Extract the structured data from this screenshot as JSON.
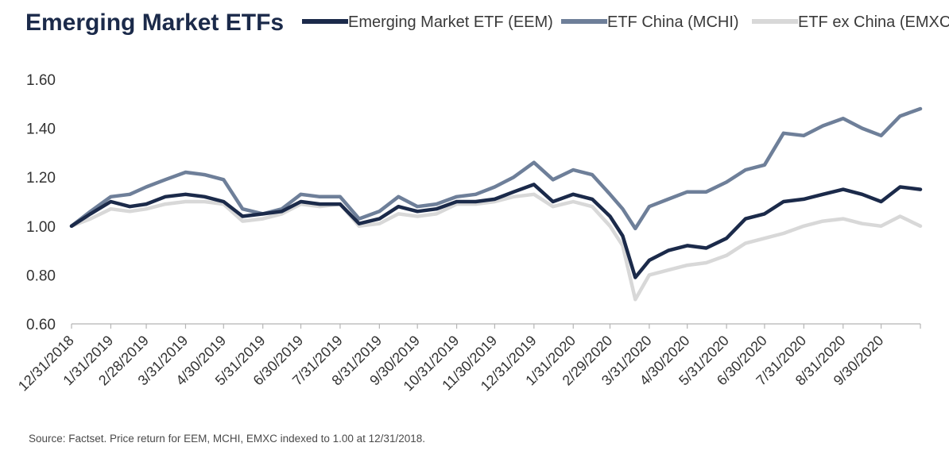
{
  "title": "Emerging Market ETFs",
  "source": "Source: Factset. Price return for EEM, MCHI, EMXC indexed to 1.00 at 12/31/2018.",
  "chart_data": {
    "type": "line",
    "title": "Emerging Market ETFs",
    "xlabel": "",
    "ylabel": "",
    "ylim": [
      0.6,
      1.6
    ],
    "yticks": [
      "0.60",
      "0.80",
      "1.00",
      "1.20",
      "1.40",
      "1.60"
    ],
    "grid": false,
    "legend_position": "top",
    "xticks": [
      "12/31/2018",
      "1/31/2019",
      "2/28/2019",
      "3/31/2019",
      "4/30/2019",
      "5/31/2019",
      "6/30/2019",
      "7/31/2019",
      "8/31/2019",
      "9/30/2019",
      "10/31/2019",
      "11/30/2019",
      "12/31/2019",
      "1/31/2020",
      "2/29/2020",
      "3/31/2020",
      "4/30/2020",
      "5/31/2020",
      "6/30/2020",
      "7/31/2020",
      "8/31/2020",
      "9/30/2020"
    ],
    "x": [
      "12/31/2018",
      "1/15/2019",
      "1/31/2019",
      "2/15/2019",
      "2/28/2019",
      "3/15/2019",
      "3/31/2019",
      "4/15/2019",
      "4/30/2019",
      "5/15/2019",
      "5/31/2019",
      "6/15/2019",
      "6/30/2019",
      "7/15/2019",
      "7/31/2019",
      "8/15/2019",
      "8/31/2019",
      "9/15/2019",
      "9/30/2019",
      "10/15/2019",
      "10/31/2019",
      "11/15/2019",
      "11/30/2019",
      "12/15/2019",
      "12/31/2019",
      "1/15/2020",
      "1/31/2020",
      "2/15/2020",
      "2/29/2020",
      "3/10/2020",
      "3/20/2020",
      "3/31/2020",
      "4/15/2020",
      "4/30/2020",
      "5/15/2020",
      "5/31/2020",
      "6/15/2020",
      "6/30/2020",
      "7/15/2020",
      "7/31/2020",
      "8/15/2020",
      "8/31/2020",
      "9/15/2020",
      "9/30/2020",
      "10/15/2020",
      "10/31/2020"
    ],
    "series": [
      {
        "name": "Emerging Market ETF (EEM)",
        "color": "#1b2a4a",
        "values": [
          1.0,
          1.05,
          1.1,
          1.08,
          1.09,
          1.12,
          1.13,
          1.12,
          1.1,
          1.04,
          1.05,
          1.06,
          1.1,
          1.09,
          1.09,
          1.01,
          1.03,
          1.08,
          1.06,
          1.07,
          1.1,
          1.1,
          1.11,
          1.14,
          1.17,
          1.1,
          1.13,
          1.11,
          1.04,
          0.96,
          0.79,
          0.86,
          0.9,
          0.92,
          0.91,
          0.95,
          1.03,
          1.05,
          1.1,
          1.11,
          1.13,
          1.15,
          1.13,
          1.1,
          1.16,
          1.15
        ]
      },
      {
        "name": "ETF China (MCHI)",
        "color": "#6e7f99",
        "values": [
          1.0,
          1.06,
          1.12,
          1.13,
          1.16,
          1.19,
          1.22,
          1.21,
          1.19,
          1.07,
          1.05,
          1.07,
          1.13,
          1.12,
          1.12,
          1.03,
          1.06,
          1.12,
          1.08,
          1.09,
          1.12,
          1.13,
          1.16,
          1.2,
          1.26,
          1.19,
          1.23,
          1.21,
          1.13,
          1.07,
          0.99,
          1.08,
          1.11,
          1.14,
          1.14,
          1.18,
          1.23,
          1.25,
          1.38,
          1.37,
          1.41,
          1.44,
          1.4,
          1.37,
          1.45,
          1.48
        ]
      },
      {
        "name": "ETF ex China (EMXC)",
        "color": "#d8d8d8",
        "values": [
          1.0,
          1.03,
          1.07,
          1.06,
          1.07,
          1.09,
          1.1,
          1.1,
          1.09,
          1.02,
          1.03,
          1.05,
          1.09,
          1.08,
          1.09,
          1.0,
          1.01,
          1.05,
          1.04,
          1.05,
          1.09,
          1.09,
          1.1,
          1.12,
          1.13,
          1.08,
          1.1,
          1.08,
          1.0,
          0.92,
          0.7,
          0.8,
          0.82,
          0.84,
          0.85,
          0.88,
          0.93,
          0.95,
          0.97,
          1.0,
          1.02,
          1.03,
          1.01,
          1.0,
          1.04,
          1.0
        ]
      }
    ]
  }
}
